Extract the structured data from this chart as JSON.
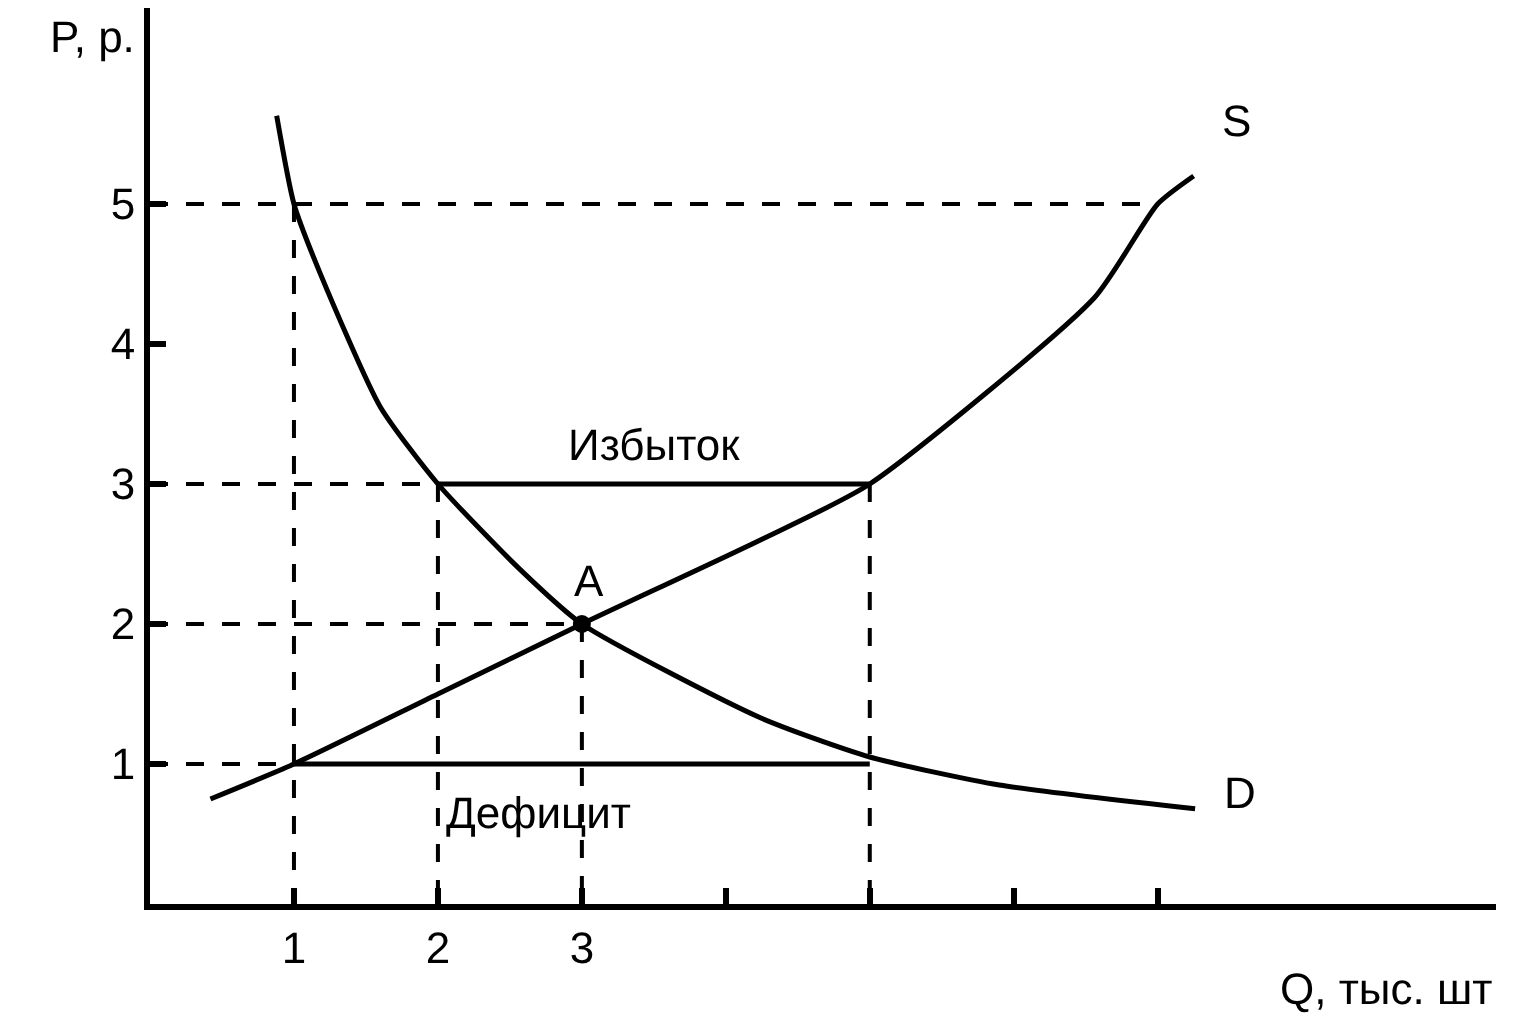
{
  "chart_data": {
    "type": "line",
    "xlabel": "Q, тыс. шт",
    "ylabel": "P, р.",
    "xlim": [
      0,
      9.35
    ],
    "ylim": [
      0,
      6.4
    ],
    "xticks": [
      1,
      2,
      3,
      {
        "value": 4,
        "label": null
      },
      {
        "value": 5,
        "label": null
      },
      {
        "value": 6,
        "label": null
      },
      {
        "value": 7,
        "label": null
      }
    ],
    "yticks": [
      1,
      2,
      3,
      4,
      5
    ],
    "series": [
      {
        "name": "S",
        "color": "#000000",
        "line_style": "solid",
        "marker": "none",
        "x": [
          0.42,
          1,
          2,
          3,
          4.24,
          5,
          6.56,
          7,
          7.25
        ],
        "values": [
          0.75,
          1,
          1.5,
          2,
          2.6,
          3,
          4.33,
          5,
          5.2
        ]
      },
      {
        "name": "D",
        "color": "#000000",
        "line_style": "solid",
        "marker": "none",
        "x": [
          0.88,
          1,
          1.18,
          1.6,
          2,
          2.57,
          3,
          4.24,
          5,
          5.9,
          7.26
        ],
        "values": [
          5.63,
          5,
          4.51,
          3.55,
          3,
          2.39,
          2,
          1.33,
          1.05,
          0.85,
          0.68
        ]
      },
      {
        "color": "#000000",
        "line_style": "dashed",
        "marker": "none",
        "x": [
          0,
          7
        ],
        "values": [
          5,
          5
        ]
      },
      {
        "color": "#000000",
        "line_style": "dashed",
        "marker": "none",
        "x": [
          0,
          2
        ],
        "values": [
          3,
          3
        ]
      },
      {
        "color": "#000000",
        "line_style": "dashed",
        "marker": "none",
        "x": [
          0,
          3
        ],
        "values": [
          2,
          2
        ]
      },
      {
        "color": "#000000",
        "line_style": "dashed",
        "marker": "none",
        "x": [
          0,
          1
        ],
        "values": [
          1,
          1
        ]
      },
      {
        "color": "#000000",
        "line_style": "dashed",
        "marker": "none",
        "x": [
          1,
          1
        ],
        "values": [
          5,
          0
        ]
      },
      {
        "color": "#000000",
        "line_style": "dashed",
        "marker": "none",
        "x": [
          2,
          2
        ],
        "values": [
          3,
          0
        ]
      },
      {
        "color": "#000000",
        "line_style": "dashed",
        "marker": "none",
        "x": [
          3,
          3
        ],
        "values": [
          2,
          0
        ]
      },
      {
        "color": "#000000",
        "line_style": "dashed",
        "marker": "none",
        "x": [
          5,
          5
        ],
        "values": [
          3,
          0
        ]
      },
      {
        "color": "#000000",
        "line_style": "solid",
        "marker": "none",
        "x": [
          2,
          5
        ],
        "values": [
          3,
          3
        ]
      },
      {
        "color": "#000000",
        "line_style": "solid",
        "marker": "none",
        "x": [
          1,
          5
        ],
        "values": [
          1,
          1
        ]
      },
      {
        "name": "A",
        "color": "#000000",
        "type": "scatter",
        "marker": "circle",
        "x": [
          3
        ],
        "values": [
          2
        ]
      }
    ],
    "annotations": [
      {
        "text": "Избыток",
        "x": 3.5,
        "y": 3
      },
      {
        "text": "Дефицит",
        "x": 2.7,
        "y": 1
      }
    ]
  }
}
